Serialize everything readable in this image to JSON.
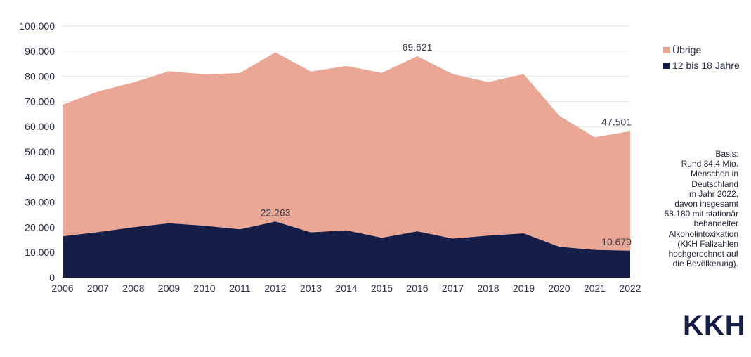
{
  "chart_data": {
    "type": "area",
    "stacked": true,
    "title": "",
    "xlabel": "",
    "ylabel": "",
    "x": [
      "2006",
      "2007",
      "2008",
      "2009",
      "2010",
      "2011",
      "2012",
      "2013",
      "2014",
      "2015",
      "2016",
      "2017",
      "2018",
      "2019",
      "2020",
      "2021",
      "2022"
    ],
    "ylim": [
      0,
      100000
    ],
    "yticks": [
      0,
      10000,
      20000,
      30000,
      40000,
      50000,
      60000,
      70000,
      80000,
      90000,
      100000
    ],
    "ytick_labels": [
      "0",
      "10.000",
      "20.000",
      "30.000",
      "40.000",
      "50.000",
      "60.000",
      "70.000",
      "80.000",
      "90.000",
      "100.000"
    ],
    "grid": true,
    "legend_position": "right",
    "series": [
      {
        "name": "12 bis 18 Jahre",
        "color": "#141e46",
        "values": [
          16400,
          18100,
          20000,
          21600,
          20600,
          19200,
          22263,
          18000,
          18800,
          15800,
          18400,
          15500,
          16700,
          17600,
          12200,
          11000,
          10679
        ]
      },
      {
        "name": "Übrige",
        "color": "#eba796",
        "values": [
          52300,
          55900,
          57600,
          60400,
          60200,
          62100,
          67300,
          63900,
          65300,
          65600,
          69621,
          65400,
          61000,
          63300,
          52100,
          44800,
          47501
        ]
      }
    ],
    "annotations": [
      {
        "text": "69.621",
        "x": "2016",
        "series": "Übrige"
      },
      {
        "text": "47.501",
        "x": "2022",
        "series": "Übrige"
      },
      {
        "text": "22.263",
        "x": "2012",
        "series": "12 bis 18 Jahre"
      },
      {
        "text": "10.679",
        "x": "2022",
        "series": "12 bis 18 Jahre"
      }
    ]
  },
  "note_lines": [
    "Basis:",
    "Rund 84,4 Mio.",
    "Menschen in",
    "Deutschland",
    "im Jahr 2022,",
    "davon insgesamt",
    "58.180 mit stationär",
    "behandelter",
    "Alkoholintoxikation",
    "(KKH Fallzahlen",
    "hochgerechnet auf",
    "die Bevölkerung)."
  ],
  "logo": {
    "text": "KKH"
  }
}
